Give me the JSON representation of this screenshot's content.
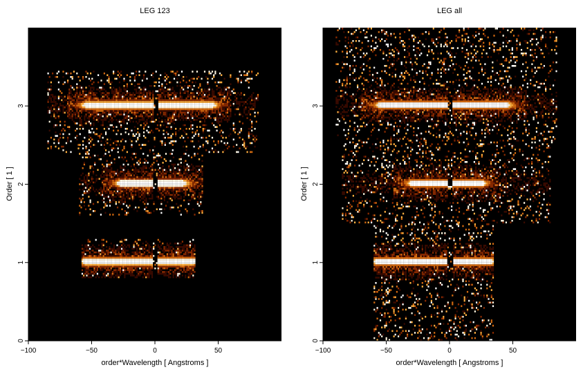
{
  "chart_data": [
    {
      "type": "heatmap",
      "title": "LEG 123",
      "xlabel": "order*Wavelength [ Angstroms ]",
      "ylabel": "Order [ 1 ]",
      "xlim": [
        -100,
        100
      ],
      "ylim": [
        0,
        4
      ],
      "xticks": [
        -100,
        -50,
        0,
        50
      ],
      "yticks": [
        0,
        1,
        2,
        3
      ],
      "colormap": [
        "#000000",
        "#3a0a00",
        "#8a2a00",
        "#d46a10",
        "#ffb040",
        "#fff6e0",
        "#ffffff"
      ],
      "bands": [
        {
          "order": 1,
          "x_min": -58,
          "x_max": 32,
          "y_min": 0.8,
          "y_max": 1.3,
          "bright_half_width_left": 56,
          "bright_half_width_right": 30
        },
        {
          "order": 2,
          "x_min": -60,
          "x_max": 38,
          "y_min": 1.6,
          "y_max": 2.4,
          "bright_half_width_left": 28,
          "bright_half_width_right": 22
        },
        {
          "order": 3,
          "x_min": -85,
          "x_max": 82,
          "y_min": 2.4,
          "y_max": 3.45,
          "bright_half_width_left": 55,
          "bright_half_width_right": 45
        }
      ]
    },
    {
      "type": "heatmap",
      "title": "LEG all",
      "xlabel": "order*Wavelength [ Angstroms ]",
      "ylabel": "Order [ 1 ]",
      "xlim": [
        -100,
        100
      ],
      "ylim": [
        0,
        4
      ],
      "xticks": [
        -100,
        -50,
        0,
        50
      ],
      "yticks": [
        0,
        1,
        2,
        3
      ],
      "colormap": [
        "#000000",
        "#3a0a00",
        "#8a2a00",
        "#d46a10",
        "#ffb040",
        "#fff6e0",
        "#ffffff"
      ],
      "bands": [
        {
          "order": 1,
          "x_min": -60,
          "x_max": 35,
          "y_min": 0.0,
          "y_max": 1.5,
          "bright_half_width_left": 58,
          "bright_half_width_right": 32
        },
        {
          "order": 2,
          "x_min": -85,
          "x_max": 80,
          "y_min": 1.5,
          "y_max": 2.5,
          "bright_half_width_left": 30,
          "bright_half_width_right": 25
        },
        {
          "order": 3,
          "x_min": -90,
          "x_max": 85,
          "y_min": 2.5,
          "y_max": 4.0,
          "bright_half_width_left": 55,
          "bright_half_width_right": 45
        }
      ]
    }
  ]
}
